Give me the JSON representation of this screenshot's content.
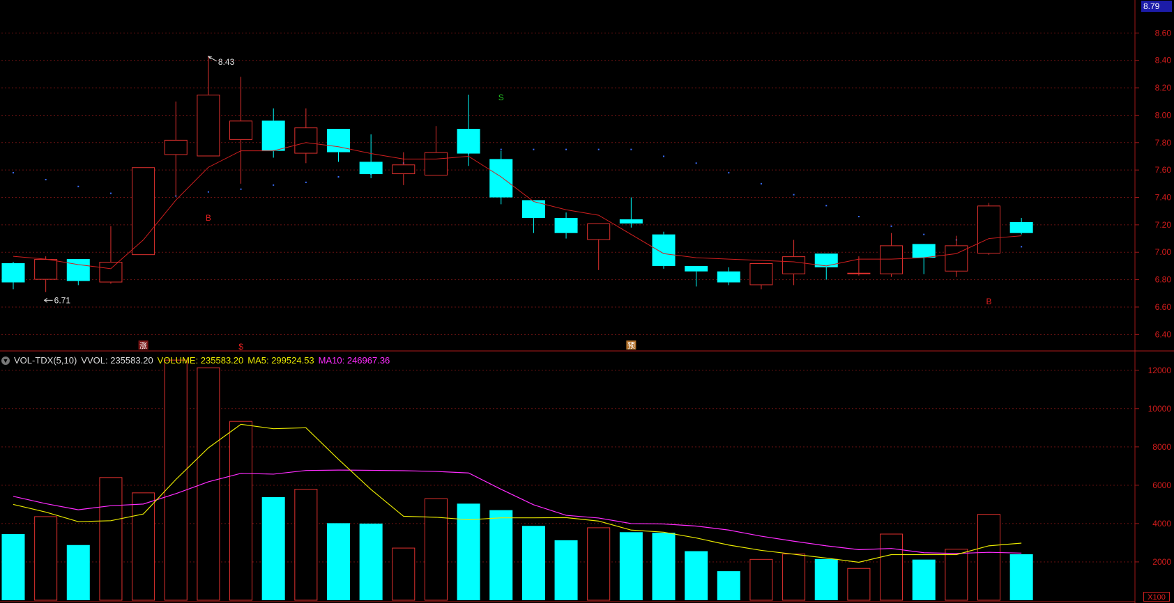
{
  "chart_data": [
    {
      "type": "candlestick",
      "name": "price",
      "ylim": [
        6.3,
        8.8
      ],
      "y_ticks": [
        "6.40",
        "6.60",
        "6.80",
        "7.00",
        "7.20",
        "7.40",
        "7.60",
        "7.80",
        "8.00",
        "8.20",
        "8.40",
        "8.60"
      ],
      "last_price_badge": "8.79",
      "candles": [
        {
          "open": 6.92,
          "high": 6.93,
          "low": 6.73,
          "close": 6.78
        },
        {
          "open": 6.8,
          "high": 6.97,
          "low": 6.71,
          "close": 6.95
        },
        {
          "open": 6.95,
          "high": 6.95,
          "low": 6.76,
          "close": 6.79
        },
        {
          "open": 6.78,
          "high": 7.19,
          "low": 6.77,
          "close": 6.93
        },
        {
          "open": 6.98,
          "high": 7.62,
          "low": 6.98,
          "close": 7.62
        },
        {
          "open": 7.71,
          "high": 8.1,
          "low": 7.41,
          "close": 7.82
        },
        {
          "open": 7.7,
          "high": 8.43,
          "low": 7.7,
          "close": 8.15
        },
        {
          "open": 7.82,
          "high": 8.28,
          "low": 7.5,
          "close": 7.96
        },
        {
          "open": 7.96,
          "high": 8.05,
          "low": 7.69,
          "close": 7.74
        },
        {
          "open": 7.72,
          "high": 8.05,
          "low": 7.65,
          "close": 7.91
        },
        {
          "open": 7.9,
          "high": 7.9,
          "low": 7.66,
          "close": 7.73
        },
        {
          "open": 7.66,
          "high": 7.86,
          "low": 7.54,
          "close": 7.57
        },
        {
          "open": 7.57,
          "high": 7.73,
          "low": 7.49,
          "close": 7.64
        },
        {
          "open": 7.56,
          "high": 7.92,
          "low": 7.56,
          "close": 7.73
        },
        {
          "open": 7.9,
          "high": 8.15,
          "low": 7.63,
          "close": 7.72
        },
        {
          "open": 7.68,
          "high": 7.74,
          "low": 7.35,
          "close": 7.4
        },
        {
          "open": 7.38,
          "high": 7.38,
          "low": 7.14,
          "close": 7.25
        },
        {
          "open": 7.25,
          "high": 7.29,
          "low": 7.1,
          "close": 7.14
        },
        {
          "open": 7.09,
          "high": 7.21,
          "low": 6.87,
          "close": 7.21
        },
        {
          "open": 7.24,
          "high": 7.4,
          "low": 7.18,
          "close": 7.21
        },
        {
          "open": 7.13,
          "high": 7.15,
          "low": 6.88,
          "close": 6.9
        },
        {
          "open": 6.9,
          "high": 6.9,
          "low": 6.75,
          "close": 6.86
        },
        {
          "open": 6.86,
          "high": 6.89,
          "low": 6.76,
          "close": 6.78
        },
        {
          "open": 6.76,
          "high": 6.92,
          "low": 6.73,
          "close": 6.92
        },
        {
          "open": 6.84,
          "high": 7.09,
          "low": 6.76,
          "close": 6.97
        },
        {
          "open": 6.99,
          "high": 6.99,
          "low": 6.8,
          "close": 6.89
        },
        {
          "open": 6.85,
          "high": 6.97,
          "low": 6.83,
          "close": 6.85
        },
        {
          "open": 6.84,
          "high": 7.14,
          "low": 6.82,
          "close": 7.05
        },
        {
          "open": 7.06,
          "high": 7.06,
          "low": 6.84,
          "close": 6.96
        },
        {
          "open": 6.86,
          "high": 7.12,
          "low": 6.82,
          "close": 7.05
        },
        {
          "open": 6.99,
          "high": 7.36,
          "low": 6.98,
          "close": 7.34
        },
        {
          "open": 7.22,
          "high": 7.25,
          "low": 7.13,
          "close": 7.14
        }
      ],
      "ma_line": [
        6.97,
        6.95,
        6.91,
        6.88,
        7.09,
        7.38,
        7.62,
        7.74,
        7.74,
        7.8,
        7.77,
        7.72,
        7.68,
        7.68,
        7.7,
        7.55,
        7.37,
        7.31,
        7.27,
        7.13,
        6.99,
        6.96,
        6.95,
        6.94,
        6.93,
        6.9,
        6.95,
        6.95,
        6.96,
        6.99,
        7.1,
        7.12
      ],
      "dots": [
        7.58,
        7.53,
        7.48,
        7.43,
        7.42,
        7.41,
        7.44,
        7.46,
        7.49,
        7.51,
        7.55,
        7.57,
        7.65,
        7.67,
        7.72,
        7.75,
        7.75,
        7.75,
        7.75,
        7.75,
        7.7,
        7.65,
        7.58,
        7.5,
        7.42,
        7.34,
        7.26,
        7.19,
        7.13,
        7.09,
        7.06,
        7.04
      ],
      "annotations": [
        {
          "text": "8.43",
          "index": 6,
          "value": 8.43,
          "kind": "high"
        },
        {
          "text": "6.71",
          "index": 1,
          "value": 6.71,
          "kind": "low"
        },
        {
          "text": "B",
          "index": 6,
          "value": 7.23,
          "color": "#e02020"
        },
        {
          "text": "S",
          "index": 15,
          "value": 8.11,
          "color": "#22c222"
        },
        {
          "text": "B",
          "index": 30,
          "value": 6.62,
          "color": "#e02020"
        }
      ],
      "bottom_markers": [
        {
          "text": "涨",
          "index": 4
        },
        {
          "text": "$",
          "index": 7
        },
        {
          "text": "预",
          "index": 19
        }
      ]
    },
    {
      "type": "bar",
      "name": "volume",
      "ylim": [
        0,
        12500
      ],
      "y_ticks": [
        "2000",
        "4000",
        "6000",
        "8000",
        "10000",
        "12000"
      ],
      "unit_label": "X100",
      "legend": {
        "indicator": "VOL-TDX(5,10)",
        "vvol": "VVOL: 235583.20",
        "volume": "VOLUME: 235583.20",
        "ma5": "MA5: 299524.53",
        "ma10": "MA10: 246967.36"
      },
      "values": [
        3450,
        4380,
        2880,
        6420,
        5620,
        12550,
        12150,
        9350,
        5380,
        5810,
        4020,
        4000,
        2740,
        5320,
        5040,
        4700,
        3880,
        3130,
        3800,
        3550,
        3520,
        2560,
        1520,
        2150,
        2430,
        2150,
        1680,
        3470,
        2120,
        2680,
        4500,
        2400
      ],
      "ma5": [
        5000,
        4600,
        4100,
        4150,
        4500,
        6300,
        7950,
        9180,
        8950,
        9000,
        7350,
        5780,
        4380,
        4330,
        4200,
        4300,
        4300,
        4310,
        4130,
        3660,
        3550,
        3250,
        2880,
        2600,
        2400,
        2200,
        1980,
        2380,
        2380,
        2380,
        2840,
        2980
      ],
      "ma10": [
        5420,
        5040,
        4720,
        4930,
        5020,
        5560,
        6180,
        6620,
        6580,
        6770,
        6790,
        6780,
        6760,
        6720,
        6640,
        5790,
        4980,
        4430,
        4290,
        4000,
        3980,
        3870,
        3660,
        3340,
        3080,
        2840,
        2640,
        2700,
        2480,
        2440,
        2500,
        2460
      ]
    }
  ],
  "colors": {
    "up": "#e0312e",
    "down": "#00ffff",
    "grid": "#6a1212",
    "axis_text": "#d21c1c",
    "ma_price": "#d11f1f",
    "dots": "#3a6fff",
    "ma5": "#e8e800",
    "ma10": "#ff2cff",
    "legend_yellow": "#e8e800",
    "legend_magenta": "#ff2cff"
  }
}
